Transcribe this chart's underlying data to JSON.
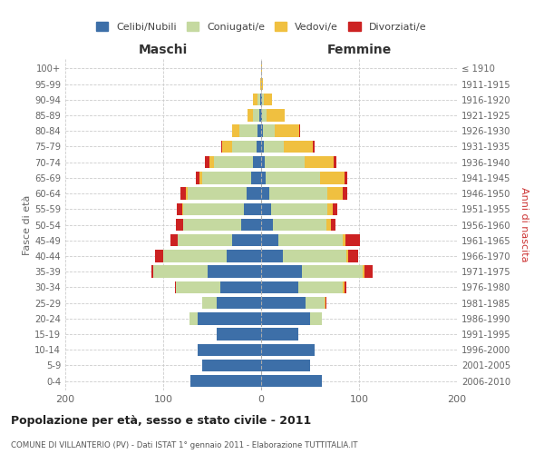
{
  "age_groups": [
    "0-4",
    "5-9",
    "10-14",
    "15-19",
    "20-24",
    "25-29",
    "30-34",
    "35-39",
    "40-44",
    "45-49",
    "50-54",
    "55-59",
    "60-64",
    "65-69",
    "70-74",
    "75-79",
    "80-84",
    "85-89",
    "90-94",
    "95-99",
    "100+"
  ],
  "birth_years": [
    "2006-2010",
    "2001-2005",
    "1996-2000",
    "1991-1995",
    "1986-1990",
    "1981-1985",
    "1976-1980",
    "1971-1975",
    "1966-1970",
    "1961-1965",
    "1956-1960",
    "1951-1955",
    "1946-1950",
    "1941-1945",
    "1936-1940",
    "1931-1935",
    "1926-1930",
    "1921-1925",
    "1916-1920",
    "1911-1915",
    "≤ 1910"
  ],
  "colors": {
    "celibe": "#3d6fa8",
    "coniugato": "#c5d9a0",
    "vedovo": "#f0c040",
    "divorziato": "#cc2222"
  },
  "males": {
    "celibe": [
      72,
      60,
      65,
      45,
      65,
      45,
      42,
      55,
      35,
      30,
      20,
      18,
      15,
      10,
      8,
      5,
      4,
      2,
      1,
      0,
      0
    ],
    "coniugato": [
      0,
      0,
      0,
      0,
      8,
      15,
      45,
      55,
      65,
      55,
      60,
      62,
      60,
      50,
      40,
      25,
      18,
      6,
      3,
      0,
      0
    ],
    "vedovo": [
      0,
      0,
      0,
      0,
      0,
      0,
      0,
      0,
      0,
      0,
      0,
      1,
      2,
      3,
      5,
      10,
      8,
      6,
      4,
      1,
      0
    ],
    "divorziato": [
      0,
      0,
      0,
      0,
      0,
      0,
      1,
      2,
      8,
      8,
      7,
      5,
      5,
      4,
      4,
      1,
      0,
      0,
      0,
      0,
      0
    ]
  },
  "females": {
    "nubile": [
      62,
      50,
      55,
      38,
      50,
      45,
      38,
      42,
      22,
      18,
      12,
      10,
      8,
      5,
      4,
      3,
      2,
      1,
      1,
      0,
      0
    ],
    "coniugata": [
      0,
      0,
      0,
      0,
      12,
      20,
      45,
      62,
      65,
      65,
      55,
      58,
      60,
      55,
      40,
      20,
      12,
      5,
      2,
      0,
      0
    ],
    "vedova": [
      0,
      0,
      0,
      0,
      0,
      1,
      2,
      2,
      2,
      3,
      4,
      5,
      15,
      25,
      30,
      30,
      25,
      18,
      8,
      2,
      1
    ],
    "divorziata": [
      0,
      0,
      0,
      0,
      0,
      1,
      2,
      8,
      10,
      15,
      5,
      5,
      5,
      3,
      3,
      2,
      1,
      0,
      0,
      0,
      0
    ]
  },
  "title": "Popolazione per età, sesso e stato civile - 2011",
  "subtitle": "COMUNE DI VILLANTERIO (PV) - Dati ISTAT 1° gennaio 2011 - Elaborazione TUTTITALIA.IT",
  "xlabel_left": "Maschi",
  "xlabel_right": "Femmine",
  "ylabel_left": "Fasce di età",
  "ylabel_right": "Anni di nascita",
  "legend_labels": [
    "Celibi/Nubili",
    "Coniugati/e",
    "Vedovi/e",
    "Divorziati/e"
  ],
  "xlim": 200,
  "bg_color": "#ffffff",
  "grid_color": "#cccccc"
}
